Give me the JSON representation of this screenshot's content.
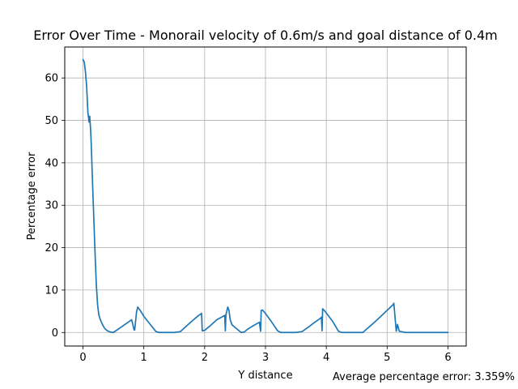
{
  "chart_data": {
    "type": "line",
    "title": "Error Over Time - Monorail velocity of 0.6m/s and goal distance of 0.4m",
    "xlabel": "Y distance",
    "ylabel": "Percentage error",
    "annotation": "Average percentage error: 3.359%",
    "xlim": [
      -0.3,
      6.3
    ],
    "ylim": [
      -3.2,
      67.3
    ],
    "xticks": [
      0,
      1,
      2,
      3,
      4,
      5,
      6
    ],
    "yticks": [
      0,
      10,
      20,
      30,
      40,
      50,
      60
    ],
    "grid": true,
    "line_color": "#1f77b4",
    "series": [
      {
        "x": [
          0.0,
          0.02,
          0.04,
          0.06,
          0.08,
          0.1,
          0.11,
          0.12,
          0.13,
          0.14,
          0.16,
          0.18,
          0.2,
          0.22,
          0.24,
          0.26,
          0.28,
          0.3,
          0.33,
          0.36,
          0.4,
          0.45,
          0.5,
          0.6,
          0.7,
          0.8,
          0.84,
          0.85,
          0.88,
          0.9,
          0.95,
          1.0,
          1.1,
          1.2,
          1.25,
          1.3,
          1.5,
          1.6,
          1.7,
          1.8,
          1.9,
          1.95,
          1.96,
          2.0,
          2.1,
          2.2,
          2.33,
          2.34,
          2.35,
          2.38,
          2.4,
          2.42,
          2.45,
          2.5,
          2.6,
          2.65,
          2.7,
          2.8,
          2.9,
          2.92,
          2.93,
          2.95,
          3.0,
          3.1,
          3.2,
          3.25,
          3.3,
          3.5,
          3.6,
          3.7,
          3.8,
          3.9,
          3.92,
          3.93,
          3.94,
          3.96,
          4.0,
          4.1,
          4.2,
          4.25,
          4.3,
          4.5,
          4.6,
          4.8,
          5.0,
          5.1,
          5.11,
          5.15,
          5.17,
          5.2,
          5.3,
          6.0
        ],
        "y": [
          64.3,
          63.8,
          61.5,
          58.0,
          52.0,
          49.6,
          51.0,
          49.0,
          46.5,
          42.5,
          34.0,
          26.0,
          18.0,
          11.0,
          6.5,
          4.2,
          3.2,
          2.5,
          1.6,
          0.9,
          0.4,
          0.1,
          0.0,
          1.0,
          2.0,
          3.0,
          0.6,
          0.6,
          4.8,
          6.0,
          5.0,
          3.8,
          2.0,
          0.2,
          0.0,
          0.0,
          0.0,
          0.2,
          1.5,
          2.8,
          4.0,
          4.5,
          0.4,
          0.5,
          1.7,
          3.0,
          4.0,
          0.4,
          4.2,
          6.0,
          5.2,
          3.0,
          1.8,
          1.2,
          0.0,
          0.1,
          0.7,
          1.6,
          2.4,
          0.3,
          5.2,
          5.3,
          4.5,
          2.5,
          0.4,
          0.0,
          0.0,
          0.0,
          0.2,
          1.2,
          2.3,
          3.3,
          3.6,
          0.4,
          5.6,
          5.3,
          4.6,
          2.7,
          0.3,
          0.0,
          0.0,
          0.0,
          0.0,
          2.5,
          5.2,
          6.6,
          6.9,
          0.3,
          1.9,
          0.3,
          0.0,
          0.0
        ]
      }
    ]
  }
}
